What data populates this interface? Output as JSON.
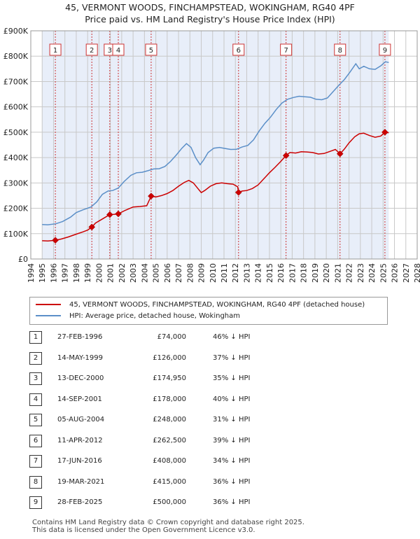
{
  "title_line1": "45, VERMONT WOODS, FINCHAMPSTEAD, WOKINGHAM, RG40 4PF",
  "title_line2": "Price paid vs. HM Land Registry's House Price Index (HPI)",
  "colors": {
    "property": "#cc0000",
    "hpi": "#5b8fc8",
    "band": "#e8eef9",
    "marker_line": "#cc3333"
  },
  "chart_data": {
    "type": "line",
    "xlim": [
      1994,
      2028
    ],
    "ylim": [
      0,
      900000
    ],
    "y_ticks": [
      {
        "value": 0,
        "label": "£0"
      },
      {
        "value": 100000,
        "label": "£100K"
      },
      {
        "value": 200000,
        "label": "£200K"
      },
      {
        "value": 300000,
        "label": "£300K"
      },
      {
        "value": 400000,
        "label": "£400K"
      },
      {
        "value": 500000,
        "label": "£500K"
      },
      {
        "value": 600000,
        "label": "£600K"
      },
      {
        "value": 700000,
        "label": "£700K"
      },
      {
        "value": 800000,
        "label": "£800K"
      },
      {
        "value": 900000,
        "label": "£900K"
      }
    ],
    "x_ticks": [
      1994,
      1995,
      1996,
      1997,
      1998,
      1999,
      2000,
      2001,
      2002,
      2003,
      2004,
      2005,
      2006,
      2007,
      2008,
      2009,
      2010,
      2011,
      2012,
      2013,
      2014,
      2015,
      2016,
      2017,
      2018,
      2019,
      2020,
      2021,
      2022,
      2023,
      2024,
      2025,
      2026,
      2027,
      2028
    ],
    "data_start": 1995.0,
    "data_end": 2025.5,
    "series": [
      {
        "name": "45, VERMONT WOODS, FINCHAMPSTEAD, WOKINGHAM, RG40 4PF (detached house)",
        "points": [
          [
            1995.0,
            72000
          ],
          [
            1995.5,
            71000
          ],
          [
            1996.16,
            74000
          ],
          [
            1996.7,
            79000
          ],
          [
            1997.3,
            87000
          ],
          [
            1998.0,
            98000
          ],
          [
            1998.6,
            107000
          ],
          [
            1999.0,
            114000
          ],
          [
            1999.37,
            126000
          ],
          [
            1999.7,
            142000
          ],
          [
            2000.3,
            158000
          ],
          [
            2000.95,
            174950
          ],
          [
            2001.3,
            176000
          ],
          [
            2001.7,
            178000
          ],
          [
            2002.3,
            192000
          ],
          [
            2003.0,
            205000
          ],
          [
            2003.6,
            207000
          ],
          [
            2004.2,
            210000
          ],
          [
            2004.59,
            248000
          ],
          [
            2005.0,
            245000
          ],
          [
            2005.5,
            250000
          ],
          [
            2006.0,
            258000
          ],
          [
            2006.5,
            270000
          ],
          [
            2007.0,
            287000
          ],
          [
            2007.5,
            302000
          ],
          [
            2007.9,
            310000
          ],
          [
            2008.3,
            300000
          ],
          [
            2008.7,
            278000
          ],
          [
            2009.0,
            262000
          ],
          [
            2009.3,
            270000
          ],
          [
            2009.8,
            287000
          ],
          [
            2010.3,
            297000
          ],
          [
            2010.8,
            300000
          ],
          [
            2011.3,
            297000
          ],
          [
            2011.8,
            295000
          ],
          [
            2012.2,
            285000
          ],
          [
            2012.28,
            262500
          ],
          [
            2012.6,
            268000
          ],
          [
            2013.0,
            270000
          ],
          [
            2013.5,
            278000
          ],
          [
            2014.0,
            292000
          ],
          [
            2014.5,
            316000
          ],
          [
            2015.0,
            340000
          ],
          [
            2015.5,
            362000
          ],
          [
            2016.0,
            385000
          ],
          [
            2016.46,
            408000
          ],
          [
            2016.8,
            420000
          ],
          [
            2017.3,
            418000
          ],
          [
            2017.8,
            423000
          ],
          [
            2018.3,
            422000
          ],
          [
            2018.8,
            420000
          ],
          [
            2019.3,
            414000
          ],
          [
            2019.8,
            416000
          ],
          [
            2020.3,
            424000
          ],
          [
            2020.8,
            432000
          ],
          [
            2021.21,
            415000
          ],
          [
            2021.6,
            434000
          ],
          [
            2022.0,
            458000
          ],
          [
            2022.5,
            482000
          ],
          [
            2022.9,
            494000
          ],
          [
            2023.3,
            496000
          ],
          [
            2023.8,
            487000
          ],
          [
            2024.3,
            480000
          ],
          [
            2024.8,
            485000
          ],
          [
            2025.16,
            500000
          ],
          [
            2025.5,
            498000
          ]
        ]
      },
      {
        "name": "HPI: Average price, detached house, Wokingham",
        "points": [
          [
            1995.0,
            136000
          ],
          [
            1995.5,
            135000
          ],
          [
            1996.2,
            139000
          ],
          [
            1996.8,
            148000
          ],
          [
            1997.5,
            165000
          ],
          [
            1998.0,
            183000
          ],
          [
            1998.6,
            194000
          ],
          [
            1999.3,
            205000
          ],
          [
            1999.8,
            225000
          ],
          [
            2000.3,
            255000
          ],
          [
            2000.8,
            268000
          ],
          [
            2001.2,
            270000
          ],
          [
            2001.7,
            280000
          ],
          [
            2002.2,
            305000
          ],
          [
            2002.8,
            330000
          ],
          [
            2003.3,
            340000
          ],
          [
            2003.8,
            342000
          ],
          [
            2004.3,
            348000
          ],
          [
            2004.8,
            355000
          ],
          [
            2005.3,
            356000
          ],
          [
            2005.8,
            365000
          ],
          [
            2006.3,
            385000
          ],
          [
            2006.8,
            410000
          ],
          [
            2007.3,
            437000
          ],
          [
            2007.7,
            455000
          ],
          [
            2008.1,
            440000
          ],
          [
            2008.5,
            400000
          ],
          [
            2008.9,
            372000
          ],
          [
            2009.2,
            390000
          ],
          [
            2009.6,
            420000
          ],
          [
            2010.1,
            437000
          ],
          [
            2010.6,
            440000
          ],
          [
            2011.1,
            436000
          ],
          [
            2011.6,
            432000
          ],
          [
            2012.1,
            433000
          ],
          [
            2012.6,
            442000
          ],
          [
            2013.1,
            448000
          ],
          [
            2013.6,
            470000
          ],
          [
            2014.1,
            505000
          ],
          [
            2014.6,
            535000
          ],
          [
            2015.1,
            560000
          ],
          [
            2015.6,
            590000
          ],
          [
            2016.1,
            615000
          ],
          [
            2016.6,
            630000
          ],
          [
            2017.1,
            637000
          ],
          [
            2017.6,
            642000
          ],
          [
            2018.1,
            640000
          ],
          [
            2018.6,
            638000
          ],
          [
            2019.1,
            630000
          ],
          [
            2019.6,
            628000
          ],
          [
            2020.1,
            635000
          ],
          [
            2020.6,
            660000
          ],
          [
            2021.1,
            685000
          ],
          [
            2021.6,
            708000
          ],
          [
            2022.1,
            738000
          ],
          [
            2022.6,
            770000
          ],
          [
            2022.9,
            750000
          ],
          [
            2023.3,
            760000
          ],
          [
            2023.8,
            750000
          ],
          [
            2024.3,
            748000
          ],
          [
            2024.8,
            762000
          ],
          [
            2025.2,
            778000
          ],
          [
            2025.5,
            775000
          ]
        ]
      }
    ],
    "transactions": [
      {
        "label": "1",
        "date": "27-FEB-1996",
        "price": "£74,000",
        "hpi": "46% ↓ HPI",
        "x": 1996.16,
        "y": 74000
      },
      {
        "label": "2",
        "date": "14-MAY-1999",
        "price": "£126,000",
        "hpi": "37% ↓ HPI",
        "x": 1999.37,
        "y": 126000
      },
      {
        "label": "3",
        "date": "13-DEC-2000",
        "price": "£174,950",
        "hpi": "35% ↓ HPI",
        "x": 2000.95,
        "y": 174950
      },
      {
        "label": "4",
        "date": "14-SEP-2001",
        "price": "£178,000",
        "hpi": "40% ↓ HPI",
        "x": 2001.7,
        "y": 178000
      },
      {
        "label": "5",
        "date": "05-AUG-2004",
        "price": "£248,000",
        "hpi": "31% ↓ HPI",
        "x": 2004.59,
        "y": 248000
      },
      {
        "label": "6",
        "date": "11-APR-2012",
        "price": "£262,500",
        "hpi": "39% ↓ HPI",
        "x": 2012.28,
        "y": 262500
      },
      {
        "label": "7",
        "date": "17-JUN-2016",
        "price": "£408,000",
        "hpi": "34% ↓ HPI",
        "x": 2016.46,
        "y": 408000
      },
      {
        "label": "8",
        "date": "19-MAR-2021",
        "price": "£415,000",
        "hpi": "36% ↓ HPI",
        "x": 2021.21,
        "y": 415000
      },
      {
        "label": "9",
        "date": "28-FEB-2025",
        "price": "£500,000",
        "hpi": "36% ↓ HPI",
        "x": 2025.16,
        "y": 500000
      }
    ]
  },
  "legend": {
    "property_label": "45, VERMONT WOODS, FINCHAMPSTEAD, WOKINGHAM, RG40 4PF (detached house)",
    "hpi_label": "HPI: Average price, detached house, Wokingham"
  },
  "footer": {
    "line1": "Contains HM Land Registry data © Crown copyright and database right 2025.",
    "line2": "This data is licensed under the Open Government Licence v3.0."
  }
}
